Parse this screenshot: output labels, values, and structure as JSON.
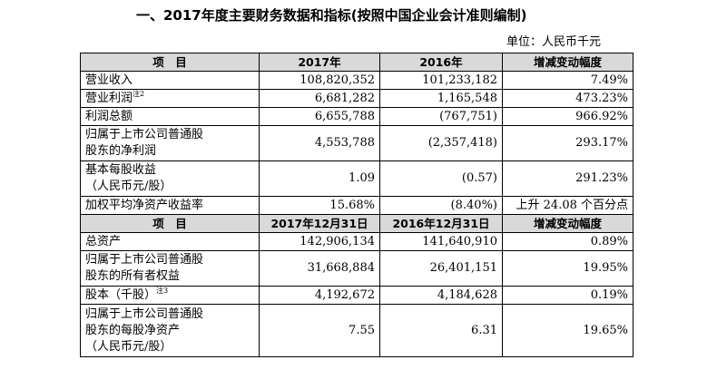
{
  "title": "一、2017年度主要财务数据和指标(按照中国企业会计准则编制)",
  "unit": "单位：人民币千元",
  "section1": {
    "headers": [
      "项　目",
      "2017年",
      "2016年",
      "增减变动幅度"
    ],
    "rows": [
      {
        "label": "营业收入",
        "note": "",
        "v2017": "108,820,352",
        "v2016": "101,233,182",
        "change": "7.49%"
      },
      {
        "label": "营业利润",
        "note": "注2",
        "v2017": "6,681,282",
        "v2016": "1,165,548",
        "change": "473.23%"
      },
      {
        "label": "利润总额",
        "note": "",
        "v2017": "6,655,788",
        "v2016": "(767,751)",
        "change": "966.92%"
      },
      {
        "label1": "归属于上市公司普通股",
        "label2": "股东的净利润",
        "v2017": "4,553,788",
        "v2016": "(2,357,418)",
        "change": "293.17%"
      },
      {
        "label1": "基本每股收益",
        "label2": "（人民币元/股）",
        "v2017": "1.09",
        "v2016": "(0.57)",
        "change": "291.23%"
      },
      {
        "label": "加权平均净资产收益率",
        "note": "",
        "v2017": "15.68%",
        "v2016": "(8.40%)",
        "change": "上升 24.08 个百分点"
      }
    ]
  },
  "section2": {
    "headers": [
      "项　目",
      "2017年12月31日",
      "2016年12月31日",
      "增减变动幅度"
    ],
    "rows": [
      {
        "label": "总资产",
        "note": "",
        "v2017": "142,906,134",
        "v2016": "141,640,910",
        "change": "0.89%"
      },
      {
        "label1": "归属于上市公司普通股",
        "label2": "股东的所有者权益",
        "v2017": "31,668,884",
        "v2016": "26,401,151",
        "change": "19.95%"
      },
      {
        "label": "股本（千股）",
        "note": "注3",
        "v2017": "4,192,672",
        "v2016": "4,184,628",
        "change": "0.19%"
      },
      {
        "label1": "归属于上市公司普通股",
        "label2": "股东的每股净资产",
        "label3": "（人民币元/股）",
        "v2017": "7.55",
        "v2016": "6.31",
        "change": "19.65%"
      }
    ]
  }
}
